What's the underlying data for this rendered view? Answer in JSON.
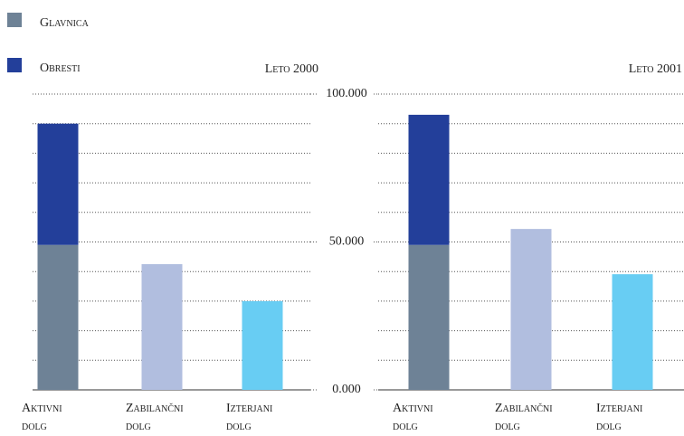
{
  "chart_data": [
    {
      "type": "stacked-bar",
      "title": "Leto 2000",
      "categories": [
        "Aktivni dolg",
        "Zabilančni dolg",
        "Izterjani dolg"
      ],
      "series": [
        {
          "name": "Glavnica",
          "color": "#6e8296",
          "values": [
            49000,
            null,
            null
          ]
        },
        {
          "name": "Obresti",
          "color": "#233f9a",
          "values": [
            41000,
            null,
            null
          ]
        }
      ],
      "values": [
        null,
        42500,
        30000
      ],
      "colors": [
        null,
        "#b1bedf",
        "#68cdf3"
      ],
      "ylim": [
        0,
        100000
      ],
      "yticks": [
        {
          "value": 0,
          "label": "0.000"
        },
        {
          "value": 50000,
          "label": "50.000"
        },
        {
          "value": 100000,
          "label": "100.000"
        }
      ],
      "grid_yticks": [
        10000,
        20000,
        30000,
        40000,
        50000,
        60000,
        70000,
        80000,
        90000,
        100000
      ]
    },
    {
      "type": "stacked-bar",
      "title": "Leto 2001",
      "categories": [
        "Aktivni dolg",
        "Zabilančni dolg",
        "Izterjani dolg"
      ],
      "series": [
        {
          "color": "#6e8296",
          "values": [
            49000,
            null,
            null
          ]
        },
        {
          "color": "#233f9a",
          "values": [
            44000,
            null,
            null
          ]
        }
      ],
      "values": [
        null,
        54400,
        39100
      ],
      "colors": [
        null,
        "#b1bedf",
        "#68cdf3"
      ],
      "ylim": [
        0,
        100000
      ],
      "grid_yticks": [
        10000,
        20000,
        30000,
        40000,
        50000,
        60000,
        70000,
        80000,
        90000,
        100000
      ]
    }
  ]
}
